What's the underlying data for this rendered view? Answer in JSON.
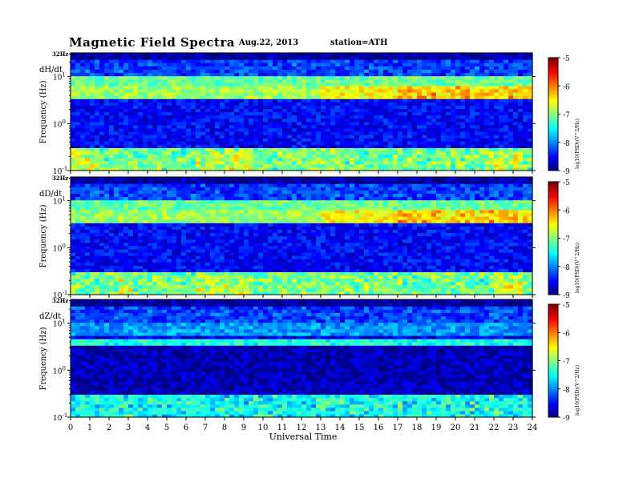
{
  "header": {
    "title": "Magnetic  Field  Spectra",
    "date": "Aug.22, 2013",
    "station": "station=ATH"
  },
  "chart_data": [
    {
      "type": "heatmap",
      "panel_label": "dH/dt",
      "ylabel": "Frequency (Hz)",
      "y_top_label": "32Hz",
      "y_ticks": [
        "10^1",
        "10^0",
        "10^-1"
      ],
      "ylim_hz": [
        0.1,
        32
      ],
      "y_scale": "log",
      "xlim": [
        0,
        24
      ],
      "colorbar": {
        "label": "log10(PSD)(V^2/Hz)",
        "ticks": [
          -5,
          -6,
          -7,
          -8,
          -9
        ],
        "range": [
          -9,
          -5
        ]
      },
      "features": {
        "bright_band_hz": [
          3.5,
          6
        ],
        "low_freq_bursts_ut": [
          [
            0,
            1.5
          ],
          [
            6.5,
            9.5
          ],
          [
            21.5,
            23.5
          ]
        ],
        "background_level": -8.3
      }
    },
    {
      "type": "heatmap",
      "panel_label": "dD/dt",
      "ylabel": "Frequency (Hz)",
      "y_top_label": "32Hz",
      "y_ticks": [
        "10^1",
        "10^0",
        "10^-1"
      ],
      "ylim_hz": [
        0.1,
        32
      ],
      "y_scale": "log",
      "xlim": [
        0,
        24
      ],
      "colorbar": {
        "label": "log10(PSD)(V^2/Hz)",
        "ticks": [
          -5,
          -6,
          -7,
          -8,
          -9
        ],
        "range": [
          -9,
          -5
        ]
      },
      "features": {
        "bright_band_hz": [
          3.5,
          6
        ],
        "low_freq_bursts_ut": [
          [
            2.5,
            3.2
          ],
          [
            6.5,
            9.5
          ],
          [
            22,
            23.5
          ]
        ],
        "background_level": -8.3
      }
    },
    {
      "type": "heatmap",
      "panel_label": "dZ/dt",
      "ylabel": "Frequency (Hz)",
      "y_top_label": "32Hz",
      "y_ticks": [
        "10^1",
        "10^0",
        "10^-1"
      ],
      "ylim_hz": [
        0.1,
        32
      ],
      "y_scale": "log",
      "xlim": [
        0,
        24
      ],
      "xlabel": "Universal Time",
      "x_ticks": [
        0,
        1,
        2,
        3,
        4,
        5,
        6,
        7,
        8,
        9,
        10,
        11,
        12,
        13,
        14,
        15,
        16,
        17,
        18,
        19,
        20,
        21,
        22,
        23,
        24
      ],
      "colorbar": {
        "label": "log10(PSD)(V^2/Hz)",
        "ticks": [
          -5,
          -6,
          -7,
          -8,
          -9
        ],
        "range": [
          -9,
          -5
        ]
      },
      "features": {
        "bright_band_hz": [
          3.5,
          4.5
        ],
        "low_freq_bursts_ut": [],
        "background_level": -8.6
      }
    }
  ]
}
